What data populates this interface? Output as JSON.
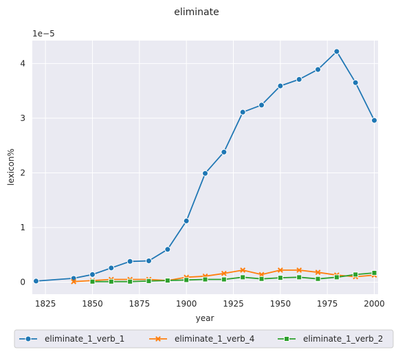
{
  "chart_data": {
    "type": "line",
    "title": "eliminate",
    "xlabel": "year",
    "ylabel": "lexicon%",
    "y_scale_label": "1e−5",
    "xlim": [
      1818,
      2002
    ],
    "ylim": [
      -0.22,
      4.42
    ],
    "x_ticks": [
      1825,
      1850,
      1875,
      1900,
      1925,
      1950,
      1975,
      2000
    ],
    "y_ticks": [
      0,
      1,
      2,
      3,
      4
    ],
    "grid": true,
    "legend_position": "bottom-center",
    "series": [
      {
        "name": "eliminate_1_verb_1",
        "color": "#1f77b4",
        "marker": "circle",
        "x": [
          1820,
          1840,
          1850,
          1860,
          1870,
          1880,
          1890,
          1900,
          1910,
          1920,
          1930,
          1940,
          1950,
          1960,
          1970,
          1980,
          1990,
          2000
        ],
        "y": [
          0.02,
          0.07,
          0.14,
          0.26,
          0.38,
          0.39,
          0.6,
          1.12,
          1.99,
          2.38,
          3.11,
          3.24,
          3.59,
          3.71,
          3.89,
          4.22,
          3.65,
          2.96
        ]
      },
      {
        "name": "eliminate_1_verb_4",
        "color": "#ff7f0e",
        "marker": "x",
        "x": [
          1840,
          1850,
          1860,
          1870,
          1880,
          1890,
          1900,
          1910,
          1920,
          1930,
          1940,
          1950,
          1960,
          1970,
          1980,
          1990,
          2000
        ],
        "y": [
          0.01,
          0.03,
          0.05,
          0.05,
          0.05,
          0.03,
          0.09,
          0.11,
          0.16,
          0.22,
          0.14,
          0.22,
          0.22,
          0.18,
          0.13,
          0.1,
          0.13
        ]
      },
      {
        "name": "eliminate_1_verb_2",
        "color": "#2ca02c",
        "marker": "square",
        "x": [
          1850,
          1860,
          1870,
          1880,
          1890,
          1900,
          1910,
          1920,
          1930,
          1940,
          1950,
          1960,
          1970,
          1980,
          1990,
          2000
        ],
        "y": [
          0.01,
          0.01,
          0.01,
          0.02,
          0.03,
          0.04,
          0.05,
          0.05,
          0.09,
          0.06,
          0.08,
          0.09,
          0.06,
          0.09,
          0.14,
          0.17
        ]
      }
    ]
  }
}
